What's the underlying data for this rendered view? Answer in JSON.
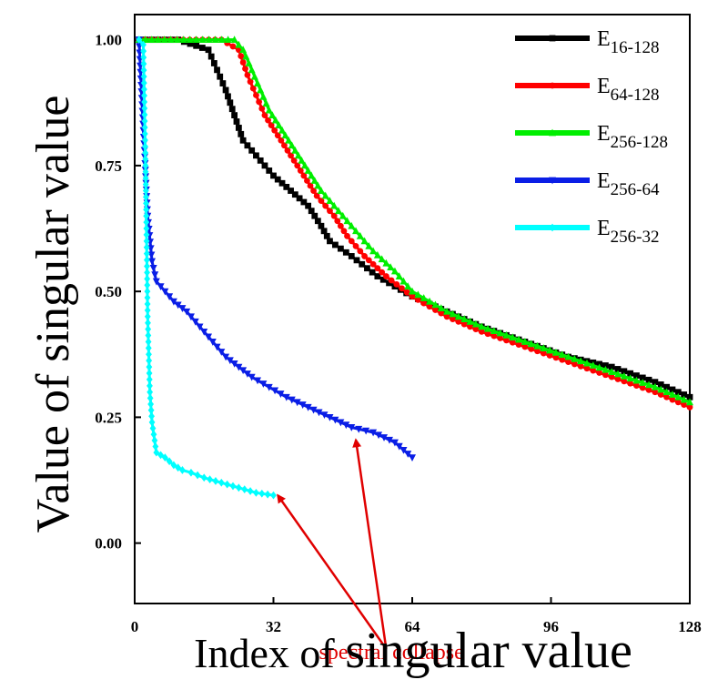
{
  "chart_data": {
    "type": "line",
    "title": "",
    "xlabel_parts": [
      "Index of ",
      "singular value"
    ],
    "ylabel": "Value of singular value",
    "xlim": [
      0,
      128
    ],
    "ylim": [
      -0.12,
      1.05
    ],
    "x_ticks": [
      0,
      32,
      64,
      96,
      128
    ],
    "y_ticks": [
      0.0,
      0.25,
      0.5,
      0.75,
      1.0
    ],
    "x_tick_labels": [
      "0",
      "32",
      "64",
      "96",
      "128"
    ],
    "y_tick_labels": [
      "0.00",
      "0.25",
      "0.50",
      "0.75",
      "1.00"
    ],
    "grid": false,
    "legend_position": "top-right",
    "series": [
      {
        "name_main": "E",
        "name_sub": "16-128",
        "color": "#000000",
        "marker": "square",
        "points": [
          [
            1,
            1.0
          ],
          [
            10,
            1.0
          ],
          [
            17,
            0.98
          ],
          [
            19,
            0.94
          ],
          [
            21,
            0.9
          ],
          [
            23,
            0.85
          ],
          [
            25,
            0.8
          ],
          [
            28,
            0.77
          ],
          [
            32,
            0.73
          ],
          [
            36,
            0.7
          ],
          [
            40,
            0.67
          ],
          [
            43,
            0.63
          ],
          [
            45,
            0.6
          ],
          [
            50,
            0.57
          ],
          [
            56,
            0.53
          ],
          [
            64,
            0.49
          ],
          [
            72,
            0.46
          ],
          [
            80,
            0.43
          ],
          [
            90,
            0.4
          ],
          [
            100,
            0.37
          ],
          [
            110,
            0.35
          ],
          [
            120,
            0.32
          ],
          [
            128,
            0.29
          ]
        ]
      },
      {
        "name_main": "E",
        "name_sub": "64-128",
        "color": "#ff0000",
        "marker": "circle",
        "points": [
          [
            1,
            1.0
          ],
          [
            20,
            1.0
          ],
          [
            24,
            0.98
          ],
          [
            26,
            0.93
          ],
          [
            28,
            0.89
          ],
          [
            30,
            0.85
          ],
          [
            33,
            0.81
          ],
          [
            36,
            0.77
          ],
          [
            39,
            0.73
          ],
          [
            42,
            0.69
          ],
          [
            46,
            0.65
          ],
          [
            49,
            0.61
          ],
          [
            53,
            0.57
          ],
          [
            58,
            0.53
          ],
          [
            64,
            0.49
          ],
          [
            72,
            0.45
          ],
          [
            80,
            0.42
          ],
          [
            90,
            0.39
          ],
          [
            100,
            0.36
          ],
          [
            110,
            0.33
          ],
          [
            120,
            0.3
          ],
          [
            128,
            0.27
          ]
        ]
      },
      {
        "name_main": "E",
        "name_sub": "256-128",
        "color": "#00ee00",
        "marker": "triangle",
        "points": [
          [
            1,
            1.0
          ],
          [
            23,
            1.0
          ],
          [
            25,
            0.98
          ],
          [
            27,
            0.94
          ],
          [
            29,
            0.9
          ],
          [
            31,
            0.86
          ],
          [
            34,
            0.82
          ],
          [
            37,
            0.78
          ],
          [
            40,
            0.74
          ],
          [
            43,
            0.7
          ],
          [
            47,
            0.66
          ],
          [
            51,
            0.62
          ],
          [
            55,
            0.58
          ],
          [
            60,
            0.54
          ],
          [
            64,
            0.5
          ],
          [
            72,
            0.46
          ],
          [
            80,
            0.43
          ],
          [
            90,
            0.4
          ],
          [
            100,
            0.37
          ],
          [
            110,
            0.34
          ],
          [
            120,
            0.31
          ],
          [
            128,
            0.28
          ]
        ]
      },
      {
        "name_main": "E",
        "name_sub": "256-64",
        "color": "#0a1ee6",
        "marker": "triangle-down",
        "points": [
          [
            1,
            1.0
          ],
          [
            2,
            0.82
          ],
          [
            3,
            0.65
          ],
          [
            4,
            0.56
          ],
          [
            5,
            0.52
          ],
          [
            7,
            0.5
          ],
          [
            9,
            0.48
          ],
          [
            12,
            0.46
          ],
          [
            14,
            0.44
          ],
          [
            17,
            0.41
          ],
          [
            19,
            0.39
          ],
          [
            21,
            0.37
          ],
          [
            24,
            0.35
          ],
          [
            27,
            0.33
          ],
          [
            31,
            0.31
          ],
          [
            35,
            0.29
          ],
          [
            40,
            0.27
          ],
          [
            45,
            0.25
          ],
          [
            50,
            0.23
          ],
          [
            55,
            0.22
          ],
          [
            60,
            0.2
          ],
          [
            64,
            0.17
          ]
        ]
      },
      {
        "name_main": "E",
        "name_sub": "256-32",
        "color": "#00ffff",
        "marker": "diamond",
        "points": [
          [
            1,
            1.0
          ],
          [
            2,
            0.99
          ],
          [
            2.5,
            0.75
          ],
          [
            3,
            0.45
          ],
          [
            3.5,
            0.3
          ],
          [
            4,
            0.24
          ],
          [
            5,
            0.18
          ],
          [
            7,
            0.17
          ],
          [
            9,
            0.155
          ],
          [
            11,
            0.145
          ],
          [
            13,
            0.14
          ],
          [
            16,
            0.13
          ],
          [
            20,
            0.12
          ],
          [
            24,
            0.11
          ],
          [
            28,
            0.1
          ],
          [
            32,
            0.095
          ]
        ]
      }
    ],
    "annotation": {
      "text": "spectral collapse",
      "color": "#e00000",
      "text_at": [
        42.5,
        -0.23
      ],
      "arrows": [
        {
          "from": [
            58,
            -0.21
          ],
          "to": [
            33,
            0.095
          ]
        },
        {
          "from": [
            58,
            -0.21
          ],
          "to": [
            51,
            0.205
          ]
        }
      ]
    }
  }
}
